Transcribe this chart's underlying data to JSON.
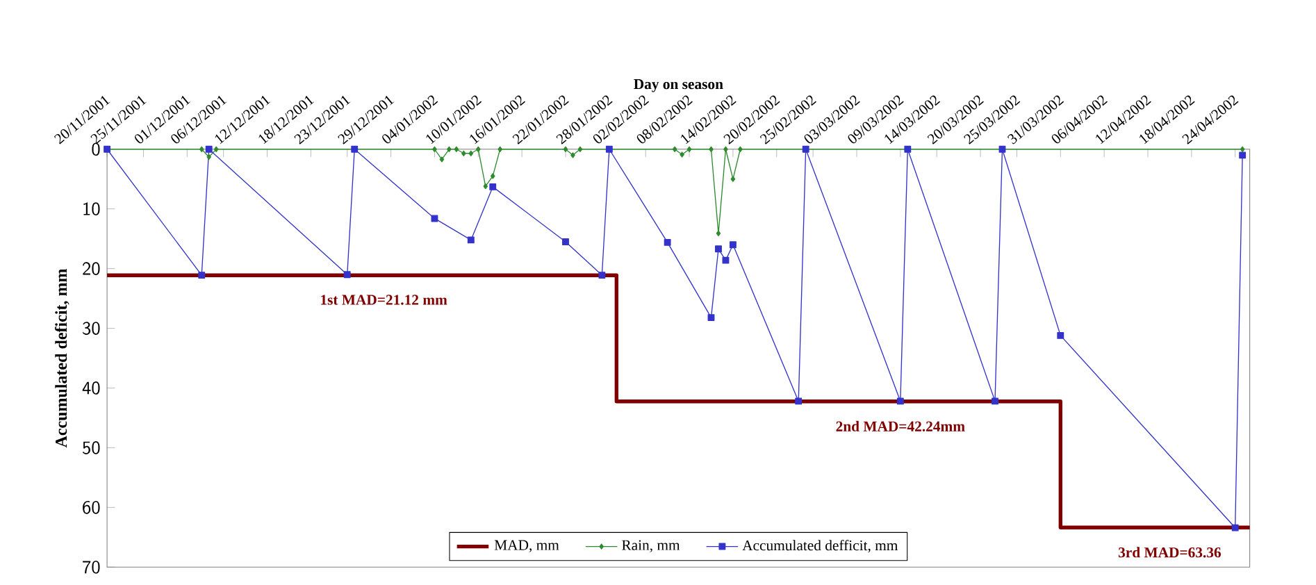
{
  "chart_data": {
    "type": "line",
    "xlabel": "Day on season",
    "ylabel": "Accumulated deficit, mm",
    "xlim": [
      "2001-11-20",
      "2002-04-26"
    ],
    "ylim": [
      70,
      0
    ],
    "yticks": [
      0,
      10,
      20,
      30,
      40,
      50,
      60,
      70
    ],
    "xticks": [
      {
        "value": "2001-11-20",
        "label": "20/11/2001"
      },
      {
        "value": "2001-11-25",
        "label": "25/11/2001"
      },
      {
        "value": "2001-12-01",
        "label": "01/12/2001"
      },
      {
        "value": "2001-12-06",
        "label": "06/12/2001"
      },
      {
        "value": "2001-12-12",
        "label": "12/12/2001"
      },
      {
        "value": "2001-12-18",
        "label": "18/12/2001"
      },
      {
        "value": "2001-12-23",
        "label": "23/12/2001"
      },
      {
        "value": "2001-12-29",
        "label": "29/12/2001"
      },
      {
        "value": "2002-01-04",
        "label": "04/01/2002"
      },
      {
        "value": "2002-01-10",
        "label": "10/01/2002"
      },
      {
        "value": "2002-01-16",
        "label": "16/01/2002"
      },
      {
        "value": "2002-01-22",
        "label": "22/01/2002"
      },
      {
        "value": "2002-01-28",
        "label": "28/01/2002"
      },
      {
        "value": "2002-02-02",
        "label": "02/02/2002"
      },
      {
        "value": "2002-02-08",
        "label": "08/02/2002"
      },
      {
        "value": "2002-02-14",
        "label": "14/02/2002"
      },
      {
        "value": "2002-02-20",
        "label": "20/02/2002"
      },
      {
        "value": "2002-02-25",
        "label": "25/02/2002"
      },
      {
        "value": "2002-03-03",
        "label": "03/03/2002"
      },
      {
        "value": "2002-03-09",
        "label": "09/03/2002"
      },
      {
        "value": "2002-03-14",
        "label": "14/03/2002"
      },
      {
        "value": "2002-03-20",
        "label": "20/03/2002"
      },
      {
        "value": "2002-03-25",
        "label": "25/03/2002"
      },
      {
        "value": "2002-03-31",
        "label": "31/03/2002"
      },
      {
        "value": "2002-04-06",
        "label": "06/04/2002"
      },
      {
        "value": "2002-04-12",
        "label": "12/04/2002"
      },
      {
        "value": "2002-04-18",
        "label": "18/04/2002"
      },
      {
        "value": "2002-04-24",
        "label": "24/04/2002"
      }
    ],
    "legend": "bottom",
    "series": [
      {
        "name": "MAD, mm",
        "type": "step",
        "color": "#800000",
        "marker": "none",
        "x": [
          "2001-11-20",
          "2002-01-29",
          "2002-03-31",
          "2002-04-26"
        ],
        "values": [
          21.12,
          42.24,
          63.36,
          63.36
        ]
      },
      {
        "name": "Rain, mm",
        "color": "#2e8b2e",
        "marker": "diamond",
        "x": [
          "2001-11-20",
          "2001-12-03",
          "2001-12-04",
          "2001-12-05",
          "2002-01-04",
          "2002-01-05",
          "2002-01-06",
          "2002-01-07",
          "2002-01-08",
          "2002-01-09",
          "2002-01-10",
          "2002-01-11",
          "2002-01-12",
          "2002-01-13",
          "2002-01-22",
          "2002-01-23",
          "2002-01-24",
          "2002-02-06",
          "2002-02-07",
          "2002-02-08",
          "2002-02-11",
          "2002-02-12",
          "2002-02-13",
          "2002-02-14",
          "2002-02-15",
          "2002-04-25"
        ],
        "values": [
          0,
          0,
          1.3,
          0,
          0,
          1.7,
          0,
          0,
          0.7,
          0.7,
          0,
          6.2,
          4.5,
          0,
          0,
          1,
          0,
          0,
          0.9,
          0,
          0,
          14.1,
          0,
          5,
          0,
          0
        ]
      },
      {
        "name": "Accumulated defficit, mm",
        "color": "#3333cc",
        "marker": "square",
        "x": [
          "2001-11-20",
          "2001-12-03",
          "2001-12-04",
          "2001-12-23",
          "2001-12-24",
          "2002-01-04",
          "2002-01-09",
          "2002-01-12",
          "2002-01-22",
          "2002-01-27",
          "2002-01-28",
          "2002-02-05",
          "2002-02-11",
          "2002-02-12",
          "2002-02-13",
          "2002-02-14",
          "2002-02-23",
          "2002-02-24",
          "2002-03-09",
          "2002-03-10",
          "2002-03-22",
          "2002-03-23",
          "2002-03-31",
          "2002-04-24",
          "2002-04-25"
        ],
        "values": [
          0,
          21.1,
          0,
          21,
          0,
          11.6,
          15.2,
          6.3,
          15.5,
          21.1,
          0,
          15.6,
          28.2,
          16.7,
          18.6,
          16,
          42.2,
          0,
          42.2,
          0,
          42.2,
          0,
          31.2,
          63.4,
          1
        ]
      }
    ],
    "annotations": [
      {
        "text": "1st MAD=21.12 mm",
        "x": "2001-12-28",
        "y": 21.12
      },
      {
        "text": "2nd MAD=42.24mm",
        "x": "2002-03-09",
        "y": 42.24
      },
      {
        "text": "3rd MAD=63.36",
        "x": "2002-04-15",
        "y": 63.36
      }
    ]
  }
}
